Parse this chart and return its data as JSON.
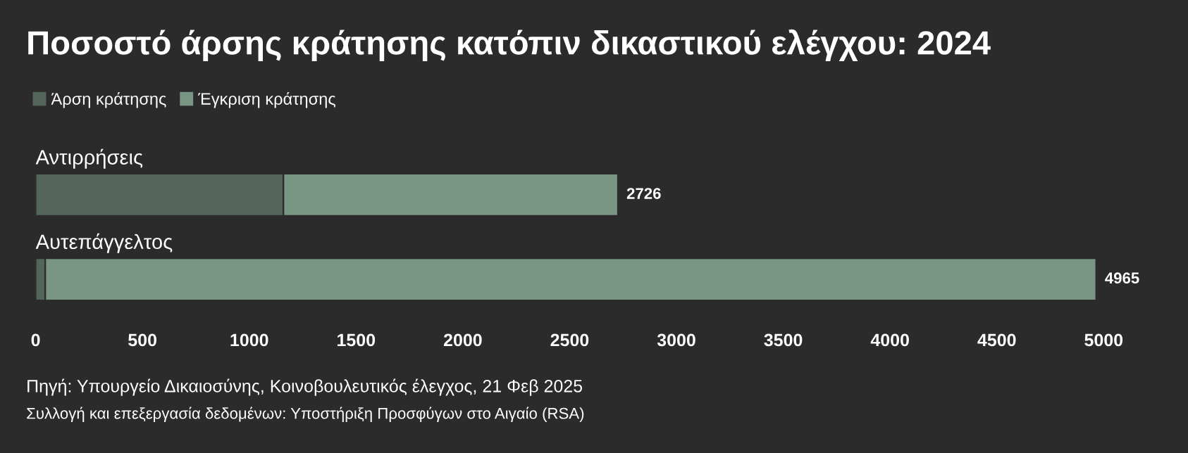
{
  "chart_data": {
    "type": "bar",
    "orientation": "horizontal",
    "stacked": true,
    "title": "Ποσοστό άρσης κράτησης κατόπιν δικαστικού ελέγχου: 2024",
    "categories": [
      "Αντιρρήσεις",
      "Αυτεπάγγελτος"
    ],
    "series": [
      {
        "name": "Άρση κράτησης",
        "color": "#54665b",
        "values": [
          1160,
          45
        ]
      },
      {
        "name": "Έγκριση κράτησης",
        "color": "#799583",
        "values": [
          1566,
          4920
        ]
      }
    ],
    "totals": [
      "2726",
      "4965"
    ],
    "xlim": [
      0,
      5000
    ],
    "xticks": [
      0,
      500,
      1000,
      1500,
      2000,
      2500,
      3000,
      3500,
      4000,
      4500,
      5000
    ],
    "grid": false,
    "legend": "top left",
    "annotations": [
      "Πηγή: Υπουργείο Δικαιοσύνης, Κοινοβουλευτικός έλεγχος, 21 Φεβ 2025",
      "Συλλογή και επεξεργασία δεδομένων: Υποστήριξη Προσφύγων στο Αιγαίο (RSA)"
    ]
  }
}
